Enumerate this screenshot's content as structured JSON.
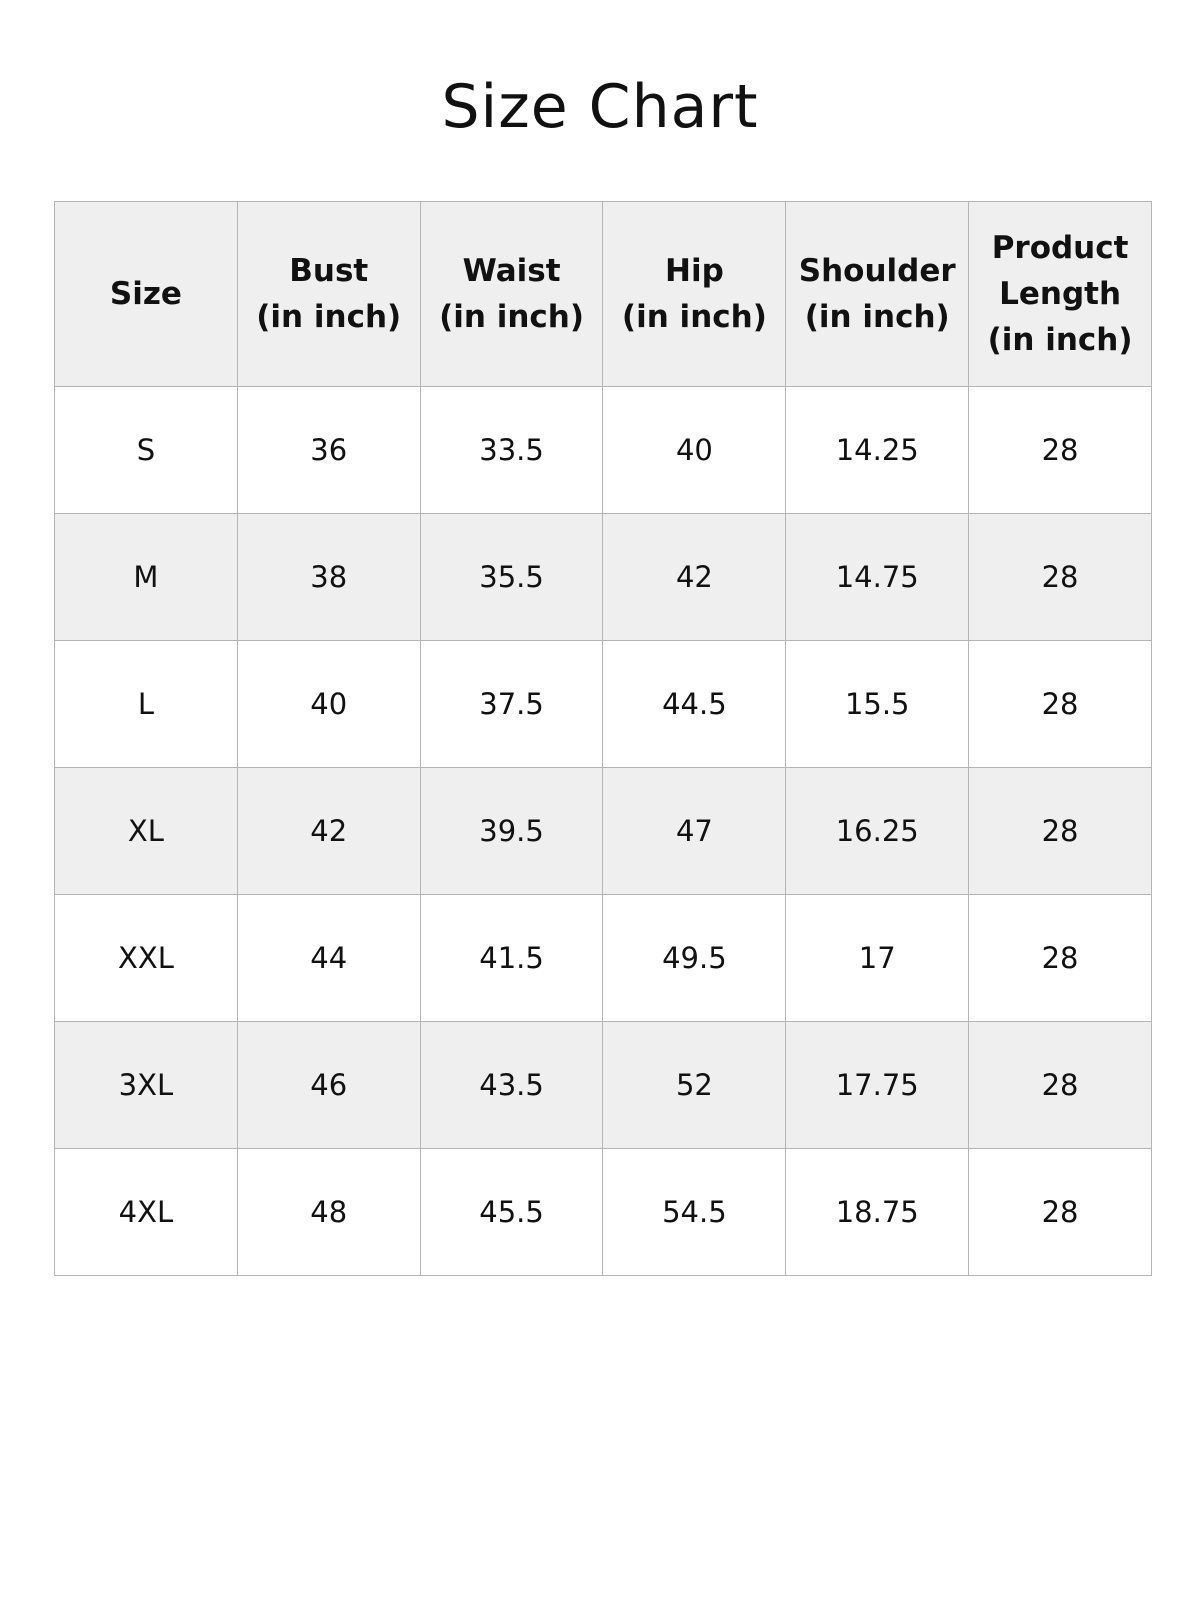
{
  "title": "Size Chart",
  "headers": [
    [
      "Size"
    ],
    [
      "Bust",
      "(in inch)"
    ],
    [
      "Waist",
      "(in inch)"
    ],
    [
      "Hip",
      "(in inch)"
    ],
    [
      "Shoulder",
      "(in inch)"
    ],
    [
      "Product",
      "Length",
      "(in inch)"
    ]
  ],
  "rows": [
    [
      "S",
      "36",
      "33.5",
      "40",
      "14.25",
      "28"
    ],
    [
      "M",
      "38",
      "35.5",
      "42",
      "14.75",
      "28"
    ],
    [
      "L",
      "40",
      "37.5",
      "44.5",
      "15.5",
      "28"
    ],
    [
      "XL",
      "42",
      "39.5",
      "47",
      "16.25",
      "28"
    ],
    [
      "XXL",
      "44",
      "41.5",
      "49.5",
      "17",
      "28"
    ],
    [
      "3XL",
      "46",
      "43.5",
      "52",
      "17.75",
      "28"
    ],
    [
      "4XL",
      "48",
      "45.5",
      "54.5",
      "18.75",
      "28"
    ]
  ],
  "colors": {
    "header_bg": "#efefef",
    "alt_row_bg": "#efefef",
    "border": "#b5b5b5"
  }
}
